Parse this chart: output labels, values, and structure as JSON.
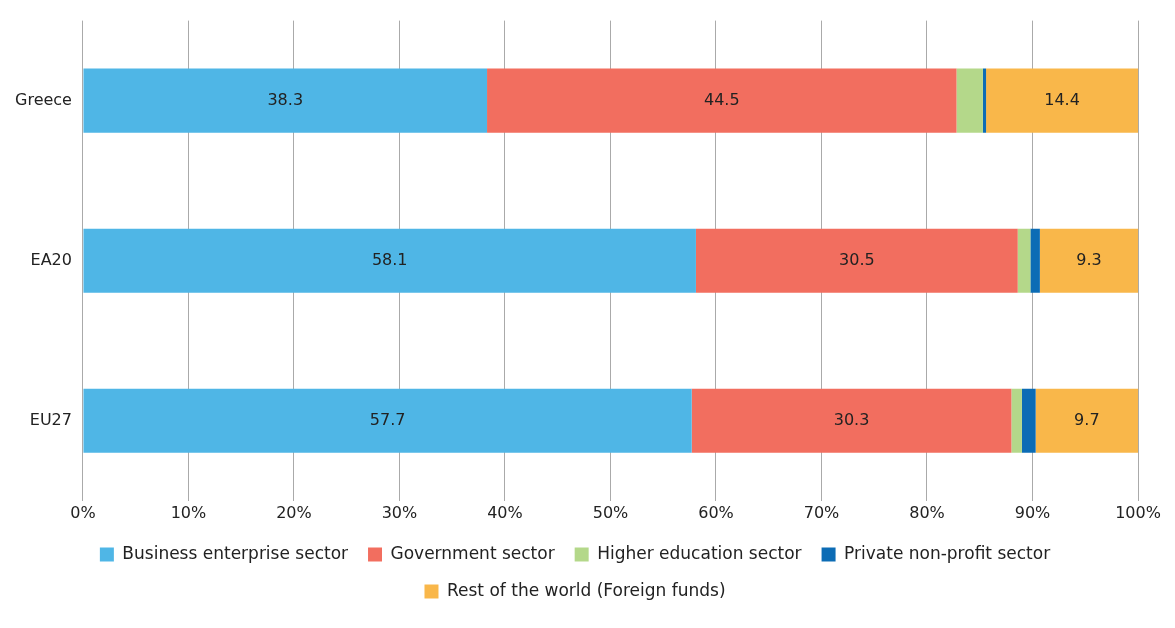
{
  "chart_data": {
    "type": "bar",
    "orientation": "horizontal",
    "stacked": true,
    "categories": [
      "Greece",
      "EA20",
      "EU27"
    ],
    "series": [
      {
        "name": "Business enterprise sector",
        "color": "#4fb6e6",
        "values": [
          38.3,
          58.1,
          57.7
        ],
        "value_labels": [
          "38.3",
          "58.1",
          "57.7"
        ]
      },
      {
        "name": "Government sector",
        "color": "#f26e5f",
        "values": [
          44.5,
          30.5,
          30.3
        ],
        "value_labels": [
          "44.5",
          "30.5",
          "30.3"
        ]
      },
      {
        "name": "Higher education sector",
        "color": "#b4d88a",
        "values": [
          2.5,
          1.2,
          1.0
        ],
        "value_labels": [
          null,
          null,
          null
        ]
      },
      {
        "name": "Private non-profit sector",
        "color": "#0c6cb5",
        "values": [
          0.3,
          0.9,
          1.3
        ],
        "value_labels": [
          null,
          null,
          null
        ]
      },
      {
        "name": "Rest of the world (Foreign funds)",
        "color": "#f9b74a",
        "values": [
          14.4,
          9.3,
          9.7
        ],
        "value_labels": [
          "14.4",
          "9.3",
          "9.7"
        ]
      }
    ],
    "xlim": [
      0,
      100
    ],
    "xticks": [
      {
        "value": 0,
        "label": "0%"
      },
      {
        "value": 10,
        "label": "10%"
      },
      {
        "value": 20,
        "label": "20%"
      },
      {
        "value": 30,
        "label": "30%"
      },
      {
        "value": 40,
        "label": "40%"
      },
      {
        "value": 50,
        "label": "50%"
      },
      {
        "value": 60,
        "label": "60%"
      },
      {
        "value": 70,
        "label": "70%"
      },
      {
        "value": 80,
        "label": "80%"
      },
      {
        "value": 90,
        "label": "90%"
      },
      {
        "value": 100,
        "label": "100%"
      }
    ],
    "grid": "x",
    "legend": "bottom"
  }
}
